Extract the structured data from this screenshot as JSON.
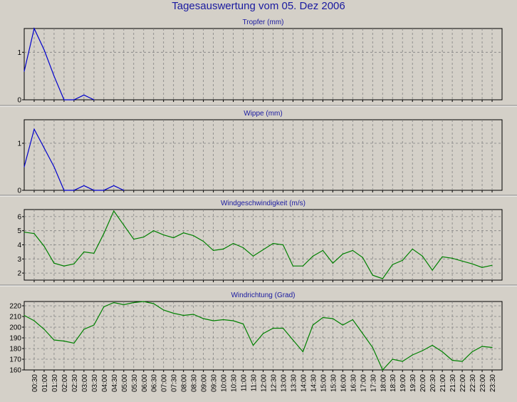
{
  "title": "Tagesauswertung vom 05. Dez 2006",
  "colors": {
    "background": "#d4d0c8",
    "title": "#1a1aa0",
    "rain_line": "#0000cc",
    "wind_line": "#008000",
    "grid": "#808080"
  },
  "chart_data": [
    {
      "type": "line",
      "title": "Tropfer (mm)",
      "ylim": [
        0,
        1.5
      ],
      "yticks": [
        0,
        1
      ],
      "grid": true,
      "x": [
        "00:00",
        "00:30",
        "01:00",
        "01:30",
        "02:00",
        "02:30",
        "03:00",
        "03:30",
        "04:00",
        "04:30",
        "05:00",
        "05:30",
        "06:00",
        "06:30",
        "07:00",
        "07:30",
        "08:00",
        "08:30",
        "09:00",
        "09:30",
        "10:00",
        "10:30",
        "11:00",
        "11:30",
        "12:00",
        "12:30",
        "13:00",
        "13:30",
        "14:00",
        "14:30",
        "15:00",
        "15:30",
        "16:00",
        "16:30",
        "17:00",
        "17:30",
        "18:00",
        "18:30",
        "19:00",
        "19:30",
        "20:00",
        "20:30",
        "21:00",
        "21:30",
        "22:00",
        "22:30",
        "23:00",
        "23:30"
      ],
      "values": [
        0.6,
        1.5,
        1.05,
        0.5,
        0,
        0,
        0.1,
        0,
        0,
        0,
        0,
        0,
        0,
        0,
        0,
        0,
        0,
        0,
        0,
        0,
        0,
        0,
        0,
        0,
        0,
        0,
        0,
        0,
        0,
        0,
        0,
        0,
        0,
        0,
        0,
        0,
        0,
        0,
        0,
        0,
        0,
        0,
        0,
        0,
        0,
        0,
        0,
        0
      ],
      "drawn_until_index": 7
    },
    {
      "type": "line",
      "title": "Wippe (mm)",
      "ylim": [
        0,
        1.5
      ],
      "yticks": [
        0,
        1
      ],
      "grid": true,
      "x": [
        "00:00",
        "00:30",
        "01:00",
        "01:30",
        "02:00",
        "02:30",
        "03:00",
        "03:30",
        "04:00",
        "04:30",
        "05:00",
        "05:30",
        "06:00",
        "06:30",
        "07:00",
        "07:30",
        "08:00",
        "08:30",
        "09:00",
        "09:30",
        "10:00",
        "10:30",
        "11:00",
        "11:30",
        "12:00",
        "12:30",
        "13:00",
        "13:30",
        "14:00",
        "14:30",
        "15:00",
        "15:30",
        "16:00",
        "16:30",
        "17:00",
        "17:30",
        "18:00",
        "18:30",
        "19:00",
        "19:30",
        "20:00",
        "20:30",
        "21:00",
        "21:30",
        "22:00",
        "22:30",
        "23:00",
        "23:30"
      ],
      "values": [
        0.5,
        1.3,
        0.9,
        0.5,
        0,
        0,
        0.1,
        0,
        0,
        0.1,
        0,
        0,
        0,
        0,
        0,
        0,
        0,
        0,
        0,
        0,
        0,
        0,
        0,
        0,
        0,
        0,
        0,
        0,
        0,
        0,
        0,
        0,
        0,
        0,
        0,
        0,
        0,
        0,
        0,
        0,
        0,
        0,
        0,
        0,
        0,
        0,
        0,
        0
      ],
      "drawn_until_index": 10
    },
    {
      "type": "line",
      "title": "Windgeschwindigkeit (m/s)",
      "ylim": [
        1.5,
        6.5
      ],
      "yticks": [
        2,
        3,
        4,
        5,
        6
      ],
      "grid": true,
      "x": [
        "00:00",
        "00:30",
        "01:00",
        "01:30",
        "02:00",
        "02:30",
        "03:00",
        "03:30",
        "04:00",
        "04:30",
        "05:00",
        "05:30",
        "06:00",
        "06:30",
        "07:00",
        "07:30",
        "08:00",
        "08:30",
        "09:00",
        "09:30",
        "10:00",
        "10:30",
        "11:00",
        "11:30",
        "12:00",
        "12:30",
        "13:00",
        "13:30",
        "14:00",
        "14:30",
        "15:00",
        "15:30",
        "16:00",
        "16:30",
        "17:00",
        "17:30",
        "18:00",
        "18:30",
        "19:00",
        "19:30",
        "20:00",
        "20:30",
        "21:00",
        "21:30",
        "22:00",
        "22:30",
        "23:00",
        "23:30"
      ],
      "values": [
        4.9,
        4.8,
        3.9,
        2.7,
        2.5,
        2.65,
        3.5,
        3.4,
        4.8,
        6.4,
        5.4,
        4.4,
        4.55,
        5.0,
        4.7,
        4.5,
        4.85,
        4.65,
        4.25,
        3.6,
        3.7,
        4.1,
        3.8,
        3.2,
        3.65,
        4.1,
        4.0,
        2.5,
        2.5,
        3.2,
        3.6,
        2.7,
        3.35,
        3.6,
        3.1,
        1.85,
        1.6,
        2.6,
        2.9,
        3.7,
        3.2,
        2.2,
        3.15,
        3.05,
        2.85,
        2.65,
        2.4,
        2.55
      ]
    },
    {
      "type": "line",
      "title": "Windrichtung (Grad)",
      "ylim": [
        160,
        224
      ],
      "yticks": [
        160,
        170,
        180,
        190,
        200,
        210,
        220
      ],
      "grid": true,
      "x": [
        "00:00",
        "00:30",
        "01:00",
        "01:30",
        "02:00",
        "02:30",
        "03:00",
        "03:30",
        "04:00",
        "04:30",
        "05:00",
        "05:30",
        "06:00",
        "06:30",
        "07:00",
        "07:30",
        "08:00",
        "08:30",
        "09:00",
        "09:30",
        "10:00",
        "10:30",
        "11:00",
        "11:30",
        "12:00",
        "12:30",
        "13:00",
        "13:30",
        "14:00",
        "14:30",
        "15:00",
        "15:30",
        "16:00",
        "16:30",
        "17:00",
        "17:30",
        "18:00",
        "18:30",
        "19:00",
        "19:30",
        "20:00",
        "20:30",
        "21:00",
        "21:30",
        "22:00",
        "22:30",
        "23:00",
        "23:30"
      ],
      "values": [
        211,
        206,
        198,
        188,
        187,
        185,
        198,
        202,
        219,
        223,
        221,
        223,
        224,
        222,
        216,
        213,
        211,
        212,
        208,
        206,
        207,
        206,
        203,
        183,
        194,
        199,
        199,
        188,
        177,
        202,
        209,
        208,
        202,
        207,
        194,
        181,
        160,
        170,
        168,
        174,
        178,
        183,
        177,
        169,
        168,
        177,
        182,
        181
      ]
    }
  ],
  "x_axis_labels": [
    "00:30",
    "01:00",
    "01:30",
    "02:00",
    "02:30",
    "03:00",
    "03:30",
    "04:00",
    "04:30",
    "05:00",
    "05:30",
    "06:00",
    "06:30",
    "07:00",
    "07:30",
    "08:00",
    "08:30",
    "09:00",
    "09:30",
    "10:00",
    "10:30",
    "11:00",
    "11:30",
    "12:00",
    "12:30",
    "13:00",
    "13:30",
    "14:00",
    "14:30",
    "15:00",
    "15:30",
    "16:00",
    "16:30",
    "17:00",
    "17:30",
    "18:00",
    "18:30",
    "19:00",
    "19:30",
    "20:00",
    "20:30",
    "21:00",
    "21:30",
    "22:00",
    "22:30",
    "23:00",
    "23:30"
  ]
}
